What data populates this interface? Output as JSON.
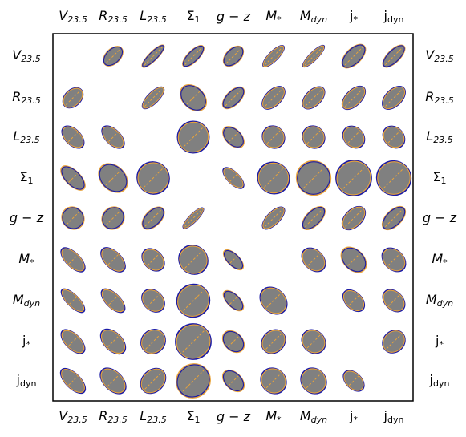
{
  "variables": [
    {
      "base": "V",
      "sub": "23.5",
      "italic": true
    },
    {
      "base": "R",
      "sub": "23.5",
      "italic": true
    },
    {
      "base": "L",
      "sub": "23.5",
      "italic": true
    },
    {
      "base": "Σ",
      "sub": "1",
      "italic": false
    },
    {
      "base": "g − z",
      "sub": "",
      "italic": true
    },
    {
      "base": "M",
      "sub": "*",
      "italic": true
    },
    {
      "base": "M",
      "sub": "dyn",
      "italic": true
    },
    {
      "base": "j",
      "sub": "*",
      "italic": false
    },
    {
      "base": "j",
      "sub": "dyn",
      "italic": false
    }
  ],
  "colors": {
    "fill": "#808080",
    "outline_blue": "#1a1aa6",
    "outline_orange": "#e8a33a",
    "dash_orange": "#e8a33a",
    "frame": "#000000"
  },
  "cells": [
    [
      null,
      [
        0.6,
        0.6,
        0.38,
        "o",
        "b"
      ],
      [
        0.6,
        0.78,
        0.22,
        "o",
        "b"
      ],
      [
        0.6,
        0.72,
        0.28,
        "o",
        "b"
      ],
      [
        0.6,
        0.62,
        0.38,
        "o",
        "b"
      ],
      [
        0.6,
        0.74,
        0.24,
        "b",
        "o"
      ],
      [
        0.6,
        0.76,
        0.2,
        "b",
        "o"
      ],
      [
        0.6,
        0.76,
        0.4,
        "o",
        "b"
      ],
      [
        0.6,
        0.74,
        0.32,
        "o",
        "b"
      ]
    ],
    [
      [
        0.6,
        0.6,
        0.42,
        "b",
        "o"
      ],
      null,
      [
        0.6,
        0.74,
        0.28,
        "b",
        "o"
      ],
      [
        0.6,
        0.55,
        0.78,
        "o",
        "b"
      ],
      [
        0.6,
        0.7,
        0.36,
        "o",
        "b"
      ],
      [
        0.6,
        0.72,
        0.4,
        "b",
        "o"
      ],
      [
        0.6,
        0.7,
        0.4,
        "b",
        "o"
      ],
      [
        0.6,
        0.74,
        0.4,
        "b",
        "o"
      ],
      [
        0.6,
        0.72,
        0.42,
        "b",
        "o"
      ]
    ],
    [
      [
        0.6,
        0.4,
        0.7,
        "b",
        "o"
      ],
      [
        0.6,
        0.38,
        0.72,
        "b",
        "o"
      ],
      null,
      [
        0.8,
        0.82,
        0.82,
        "b",
        "o"
      ],
      [
        0.6,
        0.4,
        0.66,
        "o",
        "b"
      ],
      [
        0.6,
        0.55,
        0.6,
        "b",
        "o"
      ],
      [
        0.6,
        0.55,
        0.6,
        "b",
        "o"
      ],
      [
        0.6,
        0.5,
        0.62,
        "b",
        "o"
      ],
      [
        0.6,
        0.5,
        0.62,
        "b",
        "o"
      ]
    ],
    [
      [
        0.6,
        0.38,
        0.8,
        "o",
        "b"
      ],
      [
        0.6,
        0.62,
        0.85,
        "o",
        "b"
      ],
      [
        0.6,
        0.82,
        0.85,
        "b",
        "o"
      ],
      null,
      [
        0.6,
        0.3,
        0.7,
        "b",
        "o"
      ],
      [
        0.6,
        0.8,
        0.84,
        "b",
        "o"
      ],
      [
        0.6,
        0.88,
        0.9,
        "o",
        "b"
      ],
      [
        0.6,
        0.92,
        0.92,
        "b",
        "o"
      ],
      [
        0.6,
        0.88,
        0.9,
        "b",
        "o"
      ]
    ],
    [
      [
        0.6,
        0.55,
        0.6,
        "o",
        "b"
      ],
      [
        0.6,
        0.6,
        0.55,
        "o",
        "b"
      ],
      [
        0.6,
        0.7,
        0.4,
        "o",
        "b"
      ],
      [
        0.6,
        0.72,
        0.2,
        "b",
        "o"
      ],
      null,
      [
        0.6,
        0.74,
        0.32,
        "b",
        "o"
      ],
      [
        0.6,
        0.74,
        0.38,
        "o",
        "b"
      ],
      [
        0.6,
        0.72,
        0.44,
        "b",
        "o"
      ],
      [
        0.6,
        0.74,
        0.4,
        "o",
        "b"
      ]
    ],
    [
      [
        0.6,
        0.36,
        0.8,
        "b",
        "o"
      ],
      [
        0.6,
        0.42,
        0.78,
        "b",
        "o"
      ],
      [
        0.6,
        0.48,
        0.66,
        "b",
        "o"
      ],
      [
        0.6,
        0.72,
        0.78,
        "b",
        "o"
      ],
      [
        0.6,
        0.3,
        0.66,
        "o",
        "b"
      ],
      null,
      [
        0.6,
        0.5,
        0.7,
        "b",
        "o"
      ],
      [
        0.6,
        0.52,
        0.76,
        "o",
        "b"
      ],
      [
        0.6,
        0.5,
        0.7,
        "b",
        "o"
      ]
    ],
    [
      [
        0.6,
        0.3,
        0.8,
        "b",
        "o"
      ],
      [
        0.6,
        0.36,
        0.78,
        "b",
        "o"
      ],
      [
        0.6,
        0.5,
        0.66,
        "b",
        "o"
      ],
      [
        0.6,
        0.86,
        0.84,
        "b",
        "o"
      ],
      [
        0.6,
        0.32,
        0.66,
        "o",
        "b"
      ],
      [
        0.6,
        0.6,
        0.78,
        "b",
        "o"
      ],
      null,
      [
        0.6,
        0.42,
        0.66,
        "b",
        "o"
      ],
      [
        0.6,
        0.46,
        0.66,
        "b",
        "o"
      ]
    ],
    [
      [
        0.6,
        0.38,
        0.78,
        "b",
        "o"
      ],
      [
        0.6,
        0.46,
        0.78,
        "b",
        "o"
      ],
      [
        0.6,
        0.66,
        0.6,
        "b",
        "o"
      ],
      [
        0.6,
        0.92,
        0.92,
        "b",
        "o"
      ],
      [
        0.6,
        0.46,
        0.64,
        "o",
        "b"
      ],
      [
        0.6,
        0.66,
        0.56,
        "b",
        "o"
      ],
      [
        0.6,
        0.56,
        0.66,
        "b",
        "o"
      ],
      null,
      [
        0.6,
        0.62,
        0.54,
        "b",
        "o"
      ]
    ],
    [
      [
        0.6,
        0.38,
        0.82,
        "b",
        "o"
      ],
      [
        0.6,
        0.48,
        0.8,
        "b",
        "o"
      ],
      [
        0.6,
        0.72,
        0.56,
        "b",
        "o"
      ],
      [
        0.6,
        0.9,
        0.86,
        "o",
        "b"
      ],
      [
        0.6,
        0.42,
        0.66,
        "o",
        "b"
      ],
      [
        0.6,
        0.62,
        0.7,
        "b",
        "o"
      ],
      [
        0.6,
        0.62,
        0.7,
        "b",
        "o"
      ],
      [
        0.6,
        0.4,
        0.64,
        "b",
        "o"
      ],
      null
    ]
  ]
}
